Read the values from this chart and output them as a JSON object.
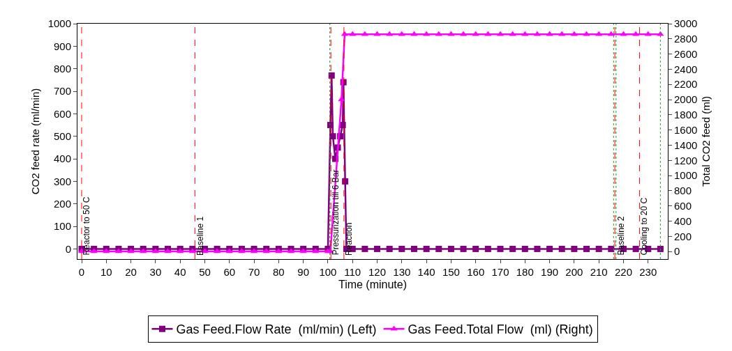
{
  "chart_data": {
    "type": "line",
    "xlabel": "Time (minute)",
    "ylabel": "CO2 feed rate (ml/min)",
    "y2label": "Total CO2 feed (ml)",
    "xlim": [
      -1.7,
      238
    ],
    "xticks": [
      0,
      10,
      20,
      30,
      40,
      50,
      60,
      70,
      80,
      90,
      100,
      110,
      120,
      130,
      140,
      150,
      160,
      170,
      180,
      190,
      200,
      210,
      220,
      230
    ],
    "ylim": [
      -45,
      1000
    ],
    "yticks": [
      0,
      100,
      200,
      300,
      400,
      500,
      600,
      700,
      800,
      900,
      1000
    ],
    "y2lim": [
      -100,
      3000
    ],
    "y2ticks": [
      0,
      200,
      400,
      600,
      800,
      1000,
      1200,
      1400,
      1600,
      1800,
      2000,
      2200,
      2400,
      2600,
      2800,
      3000
    ],
    "grid": false,
    "legend": "bottom",
    "line_style": "solid",
    "series": [
      {
        "name": "Gas Feed.Flow Rate  (ml/min) (Left)",
        "color": "#800080",
        "marker": "square",
        "x": [
          0,
          5,
          10,
          15,
          20,
          25,
          30,
          35,
          40,
          45,
          50,
          55,
          60,
          65,
          70,
          75,
          80,
          85,
          90,
          95,
          100,
          101,
          101.5,
          102,
          103,
          104,
          105,
          106,
          106.3,
          107,
          107.5,
          110,
          115,
          120,
          125,
          130,
          135,
          140,
          145,
          150,
          155,
          160,
          165,
          170,
          175,
          180,
          185,
          190,
          195,
          200,
          205,
          210,
          215,
          220,
          225,
          230,
          235
        ],
        "values": [
          0,
          0,
          0,
          0,
          0,
          0,
          0,
          0,
          0,
          0,
          0,
          0,
          0,
          0,
          0,
          0,
          0,
          0,
          0,
          0,
          0,
          550,
          770,
          500,
          400,
          450,
          500,
          550,
          740,
          300,
          0,
          0,
          0,
          0,
          0,
          0,
          0,
          0,
          0,
          0,
          0,
          0,
          0,
          0,
          0,
          0,
          0,
          0,
          0,
          0,
          0,
          0,
          0,
          0,
          0,
          0,
          0
        ]
      },
      {
        "name": "Gas Feed.Total Flow  (ml) (Right)",
        "color": "#ff00ff",
        "marker": "triangle",
        "axis": "y2",
        "x": [
          0,
          5,
          10,
          15,
          20,
          25,
          30,
          35,
          40,
          45,
          50,
          55,
          60,
          65,
          70,
          75,
          80,
          85,
          90,
          95,
          100,
          101,
          105.5,
          106.8,
          110,
          115,
          120,
          125,
          130,
          135,
          140,
          145,
          150,
          155,
          160,
          165,
          170,
          175,
          180,
          185,
          190,
          195,
          200,
          205,
          210,
          215,
          220,
          225,
          230,
          235
        ],
        "values": [
          0,
          0,
          0,
          0,
          0,
          0,
          0,
          0,
          0,
          0,
          0,
          0,
          0,
          0,
          0,
          0,
          0,
          0,
          0,
          0,
          0,
          0,
          2000,
          2860,
          2860,
          2860,
          2860,
          2860,
          2860,
          2860,
          2860,
          2860,
          2860,
          2860,
          2860,
          2860,
          2860,
          2860,
          2860,
          2860,
          2860,
          2860,
          2860,
          2860,
          2860,
          2860,
          2860,
          2860,
          2860,
          2860
        ]
      }
    ],
    "ref_lines": [
      {
        "axis": "x",
        "value": 0,
        "label": "Reactor to 50 C",
        "color": "#ff0000",
        "line_style": "dashed"
      },
      {
        "axis": "x",
        "value": 46,
        "label": "Baseline 1",
        "color": "#ff0000",
        "line_style": "dashed"
      },
      {
        "axis": "x",
        "value": 100.8,
        "label": null,
        "color": "#2e7d32",
        "line_style": "dotted"
      },
      {
        "axis": "x",
        "value": 101.2,
        "label": "Pressurization till 6 Bar",
        "color": "#ff0000",
        "line_style": "dashed"
      },
      {
        "axis": "x",
        "value": 106.5,
        "label": "Reaction",
        "color": "#ff0000",
        "line_style": "dashed"
      },
      {
        "axis": "x",
        "value": 216,
        "label": null,
        "color": "#2ca02c",
        "line_style": "dotted"
      },
      {
        "axis": "x",
        "value": 216.5,
        "label": null,
        "color": "#ff0000",
        "line_style": "dashed"
      },
      {
        "axis": "x",
        "value": 217,
        "label": "Baseline 2",
        "color": "#2ca02c",
        "line_style": "dotted"
      },
      {
        "axis": "x",
        "value": 226.5,
        "label": "Cooling to 20 C",
        "color": "#ff0000",
        "line_style": "dashed"
      },
      {
        "axis": "x",
        "value": 235,
        "label": null,
        "color": "#2ca02c",
        "line_style": "dotted"
      }
    ]
  }
}
